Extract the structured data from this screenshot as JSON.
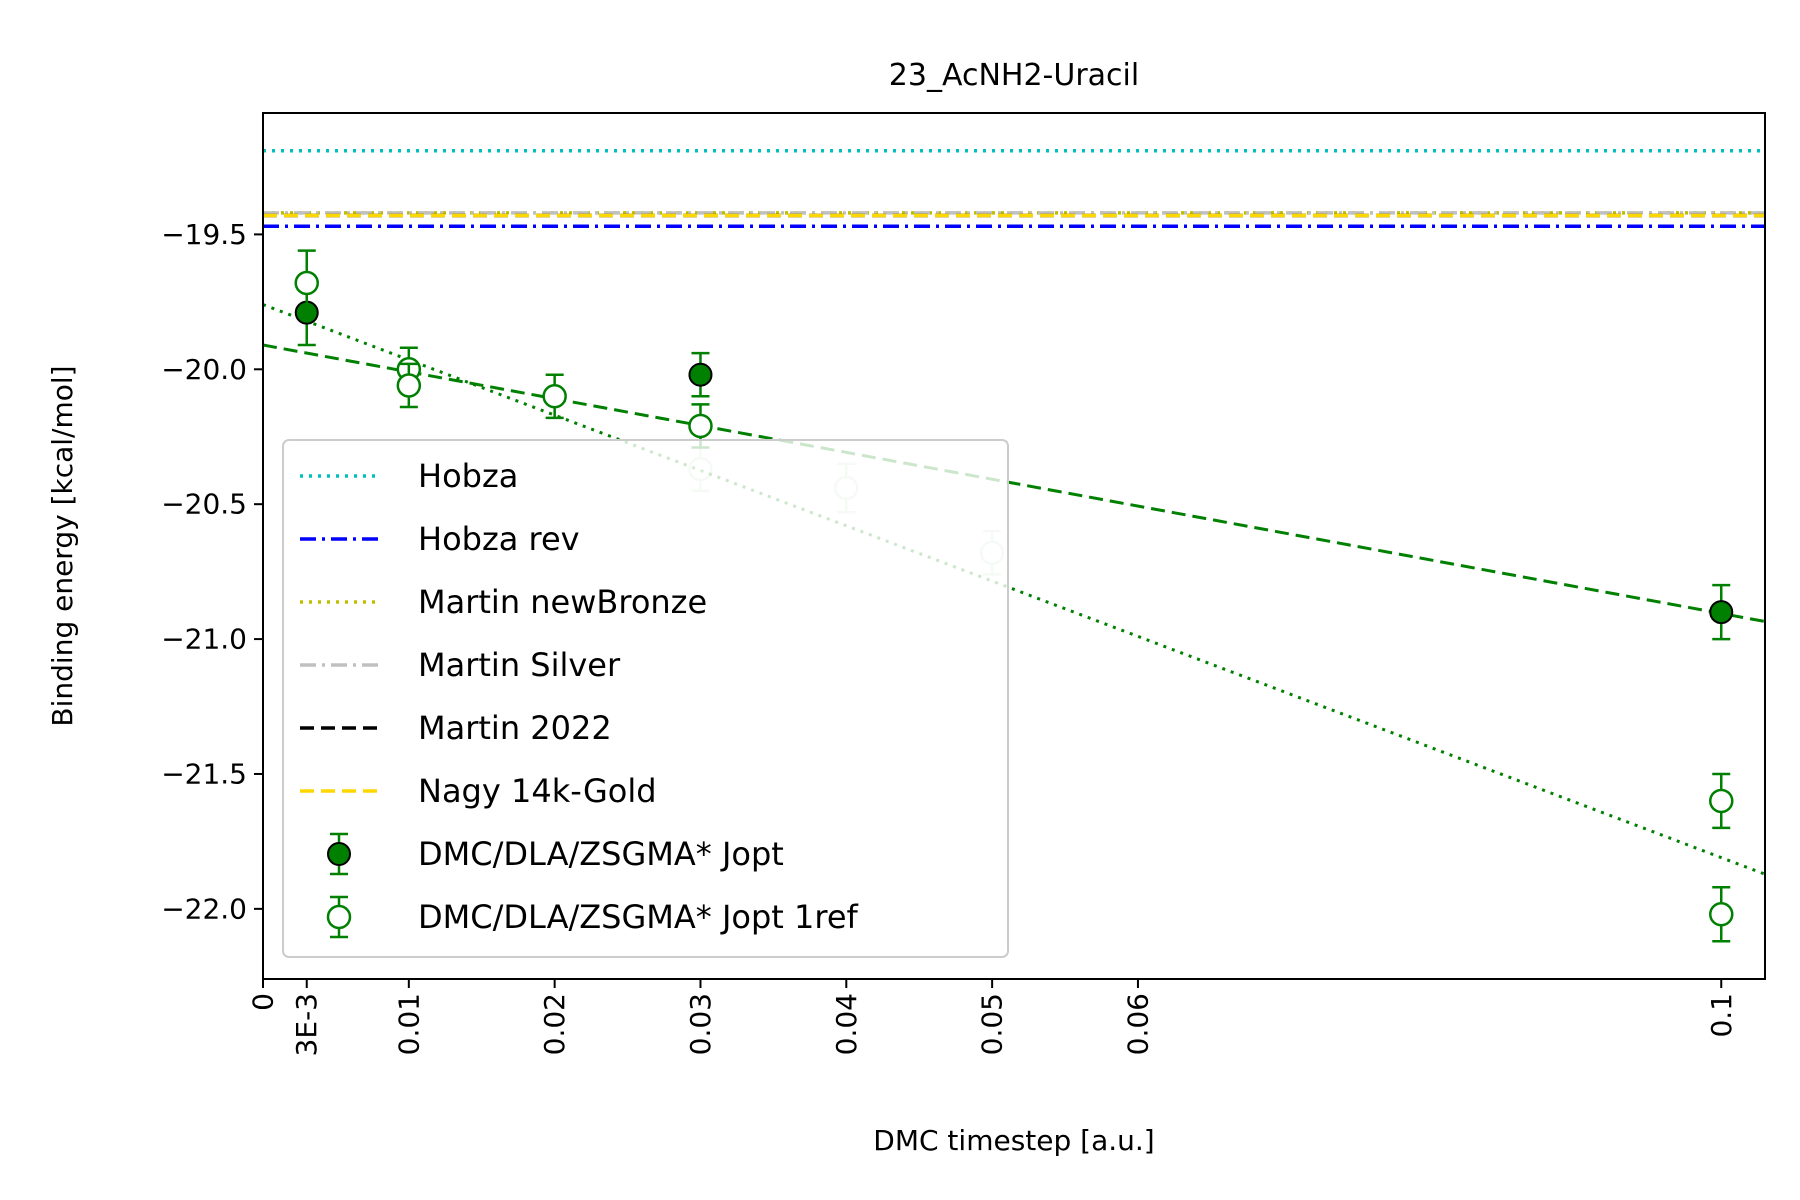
{
  "chart_data": {
    "type": "scatter",
    "title": "23_AcNH2-Uracil",
    "xlabel": "DMC timestep [a.u.]",
    "ylabel": "Binding energy [kcal/mol]",
    "xlim": [
      0,
      0.103
    ],
    "ylim": [
      -22.26,
      -19.05
    ],
    "x_ticks": [
      {
        "value": 0,
        "label": "0"
      },
      {
        "value": 0.003,
        "label": "3E-3"
      },
      {
        "value": 0.01,
        "label": "0.01"
      },
      {
        "value": 0.02,
        "label": "0.02"
      },
      {
        "value": 0.03,
        "label": "0.03"
      },
      {
        "value": 0.04,
        "label": "0.04"
      },
      {
        "value": 0.05,
        "label": "0.05"
      },
      {
        "value": 0.06,
        "label": "0.06"
      },
      {
        "value": 0.1,
        "label": "0.1"
      }
    ],
    "y_ticks": [
      {
        "value": -19.5,
        "label": "−19.5"
      },
      {
        "value": -20.0,
        "label": "−20.0"
      },
      {
        "value": -20.5,
        "label": "−20.5"
      },
      {
        "value": -21.0,
        "label": "−21.0"
      },
      {
        "value": -21.5,
        "label": "−21.5"
      },
      {
        "value": -22.0,
        "label": "−22.0"
      }
    ],
    "grid": false,
    "legend_position": "lower-left",
    "reference_lines": [
      {
        "name": "Hobza",
        "y": -19.19,
        "color": "#00bfbf",
        "style": "dotted"
      },
      {
        "name": "Hobza rev",
        "y": -19.47,
        "color": "#0000ff",
        "style": "dashdot"
      },
      {
        "name": "Martin newBronze",
        "y": -19.42,
        "color": "#bfbf00",
        "style": "dotted"
      },
      {
        "name": "Martin Silver",
        "y": -19.42,
        "color": "#c0c0c0",
        "style": "dashdot"
      },
      {
        "name": "Martin 2022",
        "y": -19.43,
        "color": "#000000",
        "style": "dashed"
      },
      {
        "name": "Nagy 14k-Gold",
        "y": -19.43,
        "color": "#ffd700",
        "style": "dashed"
      }
    ],
    "series": [
      {
        "name": "DMC/DLA/ZSGMA* Jopt",
        "color": "#008000",
        "marker": "filled",
        "points": [
          {
            "x": 0.003,
            "y": -19.79,
            "err": 0.12
          },
          {
            "x": 0.03,
            "y": -20.02,
            "err": 0.08
          },
          {
            "x": 0.1,
            "y": -20.9,
            "err": 0.1
          }
        ]
      },
      {
        "name": "DMC/DLA/ZSGMA* Jopt 1ref",
        "color": "#008000",
        "marker": "open",
        "points": [
          {
            "x": 0.003,
            "y": -19.68,
            "err": 0.12,
            "faded": false
          },
          {
            "x": 0.01,
            "y": -20.0,
            "err": 0.08,
            "faded": false
          },
          {
            "x": 0.01,
            "y": -20.06,
            "err": 0.08,
            "faded": false
          },
          {
            "x": 0.02,
            "y": -20.1,
            "err": 0.08,
            "faded": false
          },
          {
            "x": 0.03,
            "y": -20.21,
            "err": 0.08,
            "faded": false
          },
          {
            "x": 0.03,
            "y": -20.37,
            "err": 0.08,
            "faded": true
          },
          {
            "x": 0.04,
            "y": -20.44,
            "err": 0.09,
            "faded": true
          },
          {
            "x": 0.05,
            "y": -20.68,
            "err": 0.08,
            "faded": true
          },
          {
            "x": 0.1,
            "y": -21.6,
            "err": 0.1,
            "faded": false
          },
          {
            "x": 0.1,
            "y": -22.02,
            "err": 0.1,
            "faded": false
          }
        ]
      }
    ],
    "fit_lines": [
      {
        "series": "DMC/DLA/ZSGMA* Jopt",
        "style": "dashed",
        "color": "#008000",
        "intercept": -19.91,
        "slope": -9.95
      },
      {
        "series": "DMC/DLA/ZSGMA* Jopt 1ref",
        "style": "dotted",
        "color": "#008000",
        "intercept": -19.76,
        "slope": -20.5
      }
    ]
  }
}
